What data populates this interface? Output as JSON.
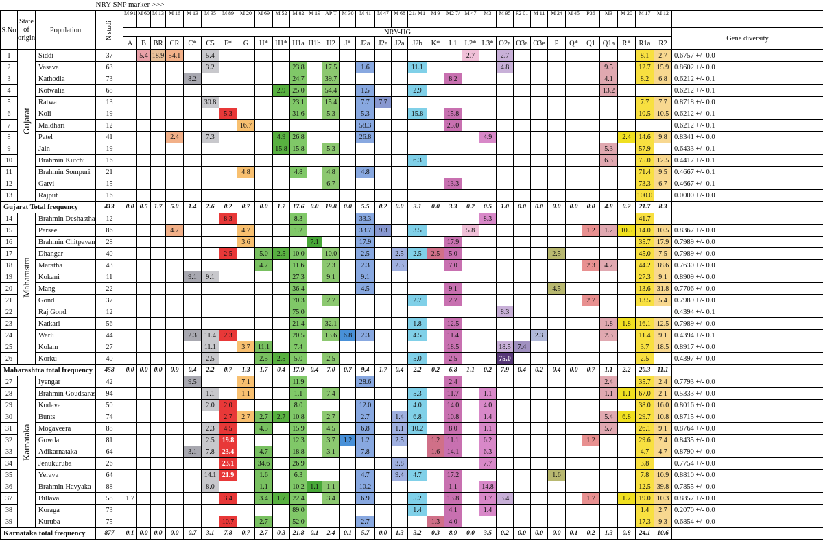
{
  "header": {
    "snp_marker_label": "NRY SNP marker >>>",
    "nry_hg_label": "NRY-HG",
    "sno_label": "S.No",
    "state_label": "State of origin",
    "population_label": "Population",
    "n_label": "N studi",
    "gd_label": "Gene diversity"
  },
  "markers": [
    "M 91",
    "M 60",
    "M 13",
    "M 16",
    "M 13",
    "M 35",
    "M 89",
    "M 20",
    "M 69",
    "M 52",
    "M 82",
    "M 19",
    "AP T",
    "M 30",
    "M 41",
    "M 47",
    "M 68",
    "21/ M1",
    "M 9",
    "M2 7/",
    "M 47",
    "M3",
    "M 95",
    "P2 01",
    "M 11",
    "M 24",
    "M 45",
    "P36",
    "M3",
    "M 20",
    "M 17",
    "M 12"
  ],
  "haplogroups": [
    "A",
    "B",
    "BR",
    "CR",
    "C*",
    "C5",
    "F*",
    "G",
    "H*",
    "H1*",
    "H1a",
    "H1b",
    "H2",
    "J*",
    "J2a",
    "J2a",
    "J2a",
    "J2b",
    "K*",
    "L1",
    "L2*",
    "L3*",
    "O2a",
    "O3a",
    "O3e",
    "P",
    "Q*",
    "Q1",
    "Q1a",
    "R*",
    "R1a",
    "R2"
  ],
  "states": [
    {
      "name": "Gujarat",
      "rows": 13
    },
    {
      "name": "Maharastra",
      "rows": 13
    },
    {
      "name": "Karnataka",
      "rows": 13
    }
  ],
  "rows": [
    {
      "sno": "1",
      "pop": "Siddi",
      "n": "37",
      "gd": "0.6757 +/- 0.0",
      "cells": {
        "B": "5.4",
        "BR": "18.9",
        "CR": "54.1",
        "C5": "5.4",
        "L2*": "2.7",
        "O2a": "2.7",
        "R1a": "8.1",
        "R2": "2.7"
      }
    },
    {
      "sno": "2",
      "pop": "Vasava",
      "n": "63",
      "gd": "0.8602 +/- 0.0",
      "cells": {
        "C5": "3.2",
        "H1a": "23.8",
        "H2": "17.5",
        "J2a1": "1.6",
        "J2b": "11.1",
        "O2a": "4.8",
        "Q1a": "9.5",
        "R1a": "12.7",
        "R2": "15.9"
      }
    },
    {
      "sno": "3",
      "pop": "Kathodia",
      "n": "73",
      "gd": "0.6212 +/- 0.1",
      "cells": {
        "C*": "8.2",
        "H1a": "24.7",
        "H2": "39.7",
        "L1": "8.2",
        "Q1a": "4.1",
        "R1a": "8.2",
        "R2": "6.8"
      }
    },
    {
      "sno": "4",
      "pop": "Kotwalia",
      "n": "68",
      "gd": "0.6212 +/- 0.1",
      "cells": {
        "H1*": "2.9",
        "H1a": "25.0",
        "H2": "54.4",
        "J2a1": "1.5",
        "J2b": "2.9",
        "Q1a": "13.2"
      }
    },
    {
      "sno": "5",
      "pop": "Ratwa",
      "n": "13",
      "gd": "0.8718 +/- 0.0",
      "cells": {
        "C5": "30.8",
        "H1a": "23.1",
        "H2": "15.4",
        "J2a1": "7.7",
        "J2a2": "7.7",
        "R1a": "7.7",
        "R2": "7.7"
      }
    },
    {
      "sno": "6",
      "pop": "Koli",
      "n": "19",
      "gd": "0.6212 +/- 0.1",
      "cells": {
        "F*": "5.3",
        "H1a": "31.6",
        "H2": "5.3",
        "J2a1": "5.3",
        "J2b": "15.8",
        "L1": "15.8",
        "R1a": "10.5",
        "R2": "10.5"
      }
    },
    {
      "sno": "7",
      "pop": "Maldhari",
      "n": "12",
      "gd": "0.6212 +/- 0.1",
      "cells": {
        "G": "16.7",
        "J2a1": "58.3",
        "L1": "25.0"
      }
    },
    {
      "sno": "8",
      "pop": "Patel",
      "n": "41",
      "gd": "0.8341 +/- 0.0",
      "cells": {
        "CR": "2.4",
        "C5": "7.3",
        "H1*": "4.9",
        "H1a": "26.8",
        "J2a1": "26.8",
        "L3*": "4.9",
        "R*": "2.4",
        "R1a": "14.6",
        "R2": "9.8"
      }
    },
    {
      "sno": "9",
      "pop": "Jain",
      "n": "19",
      "gd": "0.6433 +/- 0.1",
      "cells": {
        "H1*": "15.8",
        "H1a": "15.8",
        "H2": "5.3",
        "Q1a": "5.3",
        "R1a": "57.9"
      }
    },
    {
      "sno": "10",
      "pop": "Brahmin Kutchi",
      "n": "16",
      "gd": "0.4417 +/- 0.1",
      "cells": {
        "J2b": "6.3",
        "Q1a": "6.3",
        "R1a": "75.0",
        "R2": "12.5"
      }
    },
    {
      "sno": "11",
      "pop": "Brahmin Sompuri",
      "n": "21",
      "gd": "0.4667 +/- 0.1",
      "cells": {
        "G": "4.8",
        "H1a": "4.8",
        "H2": "4.8",
        "J2a1": "4.8",
        "R1a": "71.4",
        "R2": "9.5"
      }
    },
    {
      "sno": "12",
      "pop": "Gatvi",
      "n": "15",
      "gd": "0.4667 +/- 0.1",
      "cells": {
        "H2": "6.7",
        "L1": "13.3",
        "R1a": "73.3",
        "R2": "6.7"
      }
    },
    {
      "sno": "13",
      "pop": "Rajput",
      "n": "16",
      "gd": "0.0000 +/- 0.0",
      "cells": {
        "R1a": "100.0"
      }
    },
    {
      "total": true,
      "label": "Gujarat Total frequency",
      "n": "413",
      "vals": [
        "0.0",
        "0.5",
        "1.7",
        "5.0",
        "1.4",
        "2.6",
        "0.2",
        "0.7",
        "0.0",
        "1.7",
        "17.6",
        "0.0",
        "19.8",
        "0.0",
        "5.5",
        "0.2",
        "0.0",
        "3.1",
        "0.0",
        "3.3",
        "0.2",
        "0.5",
        "1.0",
        "0.0",
        "0.0",
        "0.0",
        "0.0",
        "0.0",
        "4.8",
        "0.2",
        "21.7",
        "8.3"
      ]
    },
    {
      "sno": "14",
      "pop": "Brahmin Deshastha",
      "n": "12",
      "gd": "",
      "cells": {
        "F*": "8.3",
        "H1a": "8.3",
        "J2a1": "33.3",
        "L3*": "8.3",
        "R1a": "41.7"
      }
    },
    {
      "sno": "15",
      "pop": "Parsee",
      "n": "86",
      "gd": "0.8367 +/- 0.0",
      "cells": {
        "CR": "4.7",
        "G": "4.7",
        "H1a": "1.2",
        "J2a1": "33.7",
        "J2a2": "9.3",
        "J2b": "3.5",
        "L2*": "5.8",
        "Q1": "1.2",
        "Q1a": "1.2",
        "R*": "10.5",
        "R1a": "14.0",
        "R2": "10.5"
      }
    },
    {
      "sno": "16",
      "pop": "Brahmin Chitpavan",
      "n": "28",
      "gd": "0.7989 +/- 0.0",
      "cells": {
        "G": "3.6",
        "H1b": "7.1",
        "J2a1": "17.9",
        "L1": "17.9",
        "R1a": "35.7",
        "R2": "17.9"
      }
    },
    {
      "sno": "17",
      "pop": "Dhangar",
      "n": "40",
      "gd": "0.7989 +/- 0.0",
      "cells": {
        "F*": "2.5",
        "H*": "5.0",
        "H1*": "2.5",
        "H1a": "10.0",
        "H2": "10.0",
        "J2a1": "2.5",
        "J2a3": "2.5",
        "J2b": "2.5",
        "K*": "2.5",
        "L1": "5.0",
        "P": "2.5",
        "R1a": "45.0",
        "R2": "7.5"
      }
    },
    {
      "sno": "18",
      "pop": "Maratha",
      "n": "43",
      "gd": "0.7630 +/- 0.0",
      "cells": {
        "H*": "4.7",
        "H1a": "11.6",
        "H2": "2.3",
        "J2a1": "2.3",
        "J2a3": "2.3",
        "L1": "7.0",
        "Q1": "2.3",
        "Q1a": "4.7",
        "R1a": "44.2",
        "R2": "18.6"
      }
    },
    {
      "sno": "19",
      "pop": "Kokani",
      "n": "11",
      "gd": "0.8909 +/- 0.0",
      "cells": {
        "C*": "9.1",
        "C5": "9.1",
        "H1a": "27.3",
        "H2": "9.1",
        "J2a1": "9.1",
        "R1a": "27.3",
        "R2": "9.1"
      }
    },
    {
      "sno": "20",
      "pop": "Mang",
      "n": "22",
      "gd": "0.7706 +/- 0.0",
      "cells": {
        "H1a": "36.4",
        "J2a1": "4.5",
        "L1": "9.1",
        "P": "4.5",
        "R1a": "13.6",
        "R2": "31.8"
      }
    },
    {
      "sno": "21",
      "pop": "Gond",
      "n": "37",
      "gd": "0.7989 +/- 0.0",
      "cells": {
        "H1a": "70.3",
        "H2": "2.7",
        "J2b": "2.7",
        "L1": "2.7",
        "Q1": "2.7",
        "R1a": "13.5",
        "R2": "5.4"
      }
    },
    {
      "sno": "22",
      "pop": "Raj Gond",
      "n": "12",
      "gd": "0.4394 +/- 0.1",
      "cells": {
        "H1a": "75.0",
        "O2a": "8.3"
      }
    },
    {
      "sno": "23",
      "pop": "Katkari",
      "n": "56",
      "gd": "0.7989 +/- 0.0",
      "cells": {
        "H1a": "21.4",
        "H2": "32.1",
        "J2b": "1.8",
        "L1": "12.5",
        "Q1a": "1.8",
        "R*": "1.8",
        "R1a": "16.1",
        "R2": "12.5"
      }
    },
    {
      "sno": "24",
      "pop": "Warli",
      "n": "44",
      "gd": "0.4394 +/- 0.1",
      "cells": {
        "C*": "2.3",
        "C5": "11.4",
        "F*": "2.3",
        "H1a": "20.5",
        "H2": "13.6",
        "J*": "6.8",
        "J2a1": "2.3",
        "J2b": "4.5",
        "L1": "11.4",
        "O3e": "2.3",
        "Q1a": "2.3",
        "R1a": "11.4",
        "R2": "9.1"
      }
    },
    {
      "sno": "25",
      "pop": "Kolam",
      "n": "27",
      "gd": "0.8917 +/- 0.0",
      "cells": {
        "C5": "11.1",
        "G": "3.7",
        "H*": "11.1",
        "H1a": "7.4",
        "L1": "18.5",
        "O2a": "18.5",
        "O3a": "7.4",
        "R1a": "3.7",
        "R2": "18.5"
      }
    },
    {
      "sno": "26",
      "pop": "Korku",
      "n": "40",
      "gd": "0.4397 +/- 0.0",
      "cells": {
        "C5": "2.5",
        "H*": "2.5",
        "H1*": "2.5",
        "H1a": "5.0",
        "H2": "2.5",
        "J2b": "5.0",
        "L1": "2.5",
        "O2a": "75.0",
        "R1a": "2.5"
      }
    },
    {
      "total": true,
      "label": "Maharashtra total frequency",
      "n": "458",
      "vals": [
        "0.0",
        "0.0",
        "0.0",
        "0.9",
        "0.4",
        "2.2",
        "0.7",
        "1.3",
        "1.7",
        "0.4",
        "17.9",
        "0.4",
        "7.0",
        "0.7",
        "9.4",
        "1.7",
        "0.4",
        "2.2",
        "0.2",
        "6.8",
        "1.1",
        "0.2",
        "7.9",
        "0.4",
        "0.2",
        "0.4",
        "0.0",
        "0.7",
        "1.1",
        "2.2",
        "20.3",
        "11.1"
      ]
    },
    {
      "sno": "27",
      "pop": "Iyengar",
      "n": "42",
      "gd": "0.7793 +/- 0.0",
      "cells": {
        "C*": "9.5",
        "G": "7.1",
        "H1a": "11.9",
        "J2a1": "28.6",
        "L1": "2.4",
        "Q1a": "2.4",
        "R1a": "35.7",
        "R2": "2.4"
      }
    },
    {
      "sno": "28",
      "pop": "Brahmin Goudsaraswat",
      "n": "94",
      "gd": "0.5333 +/- 0.0",
      "cells": {
        "C5": "1.1",
        "G": "1.1",
        "H1a": "1.1",
        "H2": "7.4",
        "J2b": "5.3",
        "L1": "11.7",
        "L3*": "1.1",
        "Q1a": "1.1",
        "R*": "1.1",
        "R1a": "67.0",
        "R2": "2.1"
      }
    },
    {
      "sno": "29",
      "pop": "Kodava",
      "n": "50",
      "gd": "0.8016 +/- 0.0",
      "cells": {
        "C5": "2.0",
        "F*": "2.0",
        "H1a": "8.0",
        "J2a1": "12.0",
        "J2b": "4.0",
        "L1": "14.0",
        "L3*": "4.0",
        "R1a": "38.0",
        "R2": "16.0"
      }
    },
    {
      "sno": "30",
      "pop": "Bunts",
      "n": "74",
      "gd": "0.8715 +/- 0.0",
      "cells": {
        "F*": "2.7",
        "G": "2.7",
        "H*": "2.7",
        "H1*": "2.7",
        "H1a": "10.8",
        "H2": "2.7",
        "J2a1": "2.7",
        "J2a3": "1.4",
        "J2b": "6.8",
        "L1": "10.8",
        "L3*": "1.4",
        "Q1a": "5.4",
        "R*": "6.8",
        "R1a": "29.7",
        "R2": "10.8"
      }
    },
    {
      "sno": "31",
      "pop": "Mogaveera",
      "n": "88",
      "gd": "0.8764 +/- 0.0",
      "cells": {
        "C5": "2.3",
        "F*": "4.5",
        "H*": "4.5",
        "H1a": "15.9",
        "H2": "4.5",
        "J2a1": "6.8",
        "J2a3": "1.1",
        "J2b": "10.2",
        "L1": "8.0",
        "L3*": "1.1",
        "Q1a": "5.7",
        "R1a": "26.1",
        "R2": "9.1"
      }
    },
    {
      "sno": "32",
      "pop": "Gowda",
      "n": "81",
      "gd": "0.8435 +/- 0.0",
      "cells": {
        "C5": "2.5",
        "F*": "19.8",
        "H1a": "12.3",
        "H2": "3.7",
        "J*": "1.2",
        "J2a1": "1.2",
        "J2a3": "2.5",
        "K*": "1.2",
        "L1": "11.1",
        "L3*": "6.2",
        "Q1": "1.2",
        "R1a": "29.6",
        "R2": "7.4"
      }
    },
    {
      "sno": "33",
      "pop": "Adikarnataka",
      "n": "64",
      "gd": "0.8790 +/- 0.0",
      "cells": {
        "C*": "3.1",
        "C5": "7.8",
        "F*": "23.4",
        "H*": "4.7",
        "H1a": "18.8",
        "H2": "3.1",
        "J2a1": "7.8",
        "K*": "1.6",
        "L1": "14.1",
        "L3*": "6.3",
        "R1a": "4.7",
        "R2": "4.7"
      }
    },
    {
      "sno": "34",
      "pop": "Jenukuruba",
      "n": "26",
      "gd": "0.7754 +/- 0.0",
      "cells": {
        "F*": "23.1",
        "H*": "34.6",
        "H1a": "26.9",
        "J2a3": "3.8",
        "L3*": "7.7",
        "R1a": "3.8"
      }
    },
    {
      "sno": "35",
      "pop": "Yerava",
      "n": "64",
      "gd": "0.8810 +/- 0.0",
      "cells": {
        "C5": "14.1",
        "F*": "21.9",
        "H*": "1.6",
        "H1a": "6.3",
        "J2a1": "4.7",
        "J2a3": "9.4",
        "J2b": "4.7",
        "L1": "17.2",
        "P": "1.6",
        "R1a": "7.8",
        "R2": "10.9"
      }
    },
    {
      "sno": "36",
      "pop": "Brahmin Havyaka",
      "n": "88",
      "gd": "0.7855 +/- 0.0",
      "cells": {
        "C5": "8.0",
        "H*": "1.1",
        "H1a": "10.2",
        "H1b": "1.1",
        "H2": "1.1",
        "J2a1": "10.2",
        "L1": "1.1",
        "L3*": "14.8",
        "R1a": "12.5",
        "R2": "39.8"
      }
    },
    {
      "sno": "37",
      "pop": "Billava",
      "n": "58",
      "gd": "0.8857 +/- 0.0",
      "cells": {
        "A": "1.7",
        "F*": "3.4",
        "H*": "3.4",
        "H1*": "1.7",
        "H1a": "22.4",
        "H2": "3.4",
        "J2a1": "6.9",
        "J2b": "5.2",
        "L1": "13.8",
        "L3*": "1.7",
        "O2a": "3.4",
        "Q1": "1.7",
        "R*": "1.7",
        "R1a": "19.0",
        "R2": "10.3"
      }
    },
    {
      "sno": "38",
      "pop": "Koraga",
      "n": "73",
      "gd": "0.2070 +/- 0.0",
      "cells": {
        "H1a": "89.0",
        "J2b": "1.4",
        "L1": "4.1",
        "L3*": "1.4",
        "R1a": "1.4",
        "R2": "2.7"
      }
    },
    {
      "sno": "39",
      "pop": "Kuruba",
      "n": "75",
      "gd": "0.6854 +/- 0.0",
      "cells": {
        "F*": "10.7",
        "H*": "2.7",
        "H1a": "52.0",
        "J2a1": "2.7",
        "K*": "1.3",
        "L1": "4.0",
        "R1a": "17.3",
        "R2": "9.3"
      }
    },
    {
      "total": true,
      "label": "Karnataka total frequency",
      "n": "877",
      "vals": [
        "0.1",
        "0.0",
        "0.0",
        "0.0",
        "0.7",
        "3.1",
        "7.8",
        "0.7",
        "2.7",
        "0.3",
        "21.8",
        "0.1",
        "2.4",
        "0.1",
        "5.7",
        "0.0",
        "1.3",
        "3.2",
        "0.3",
        "8.9",
        "0.0",
        "3.5",
        "0.2",
        "0.0",
        "0.0",
        "0.0",
        "0.1",
        "0.2",
        "1.3",
        "0.8",
        "24.1",
        "10.6"
      ]
    }
  ],
  "colors": {
    "B": "#e8a0a8",
    "BR": "#e8c098",
    "CR": "#f2b088",
    "C*": "#a8a8b0",
    "C5": "#c8c8cc",
    "F*": "#e83838",
    "G": "#f8c070",
    "H*": "#78c060",
    "H1*": "#58b040",
    "H1a": "#80c868",
    "H1b": "#48a838",
    "H2": "#8cc870",
    "J*": "#4890d8",
    "J2a1": "#88a8e0",
    "J2a2": "#8898d0",
    "J2a3": "#a0b0e0",
    "J2b": "#80d0e8",
    "K*": "#d07088",
    "L1": "#c870b0",
    "L2*": "#f0c0d8",
    "L3*": "#d888c8",
    "O2a": "#c8b0d8",
    "O3a": "#a090c0",
    "O3e": "#b0b8d8",
    "P": "#b8b870",
    "Q1": "#e89090",
    "Q1a": "#e0a8b0",
    "R*": "#f0e020",
    "R1a": "#f8e040",
    "R2": "#f8d890"
  }
}
